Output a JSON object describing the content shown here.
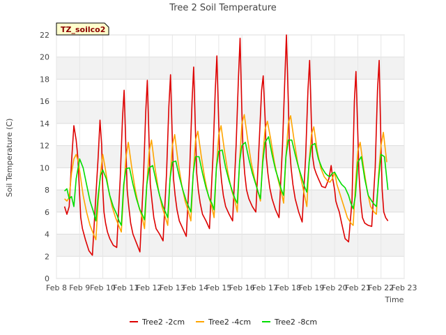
{
  "chart_data": {
    "type": "line",
    "title": "Tree 2 Soil Temperature",
    "xlabel": "Time",
    "ylabel": "Soil Temperature (C)",
    "tag": "TZ_soilco2",
    "xlim": [
      8.0,
      23.0
    ],
    "ylim": [
      0,
      22
    ],
    "x_ticks": [
      8,
      9,
      10,
      11,
      12,
      13,
      14,
      15,
      16,
      17,
      18,
      19,
      20,
      21,
      22,
      23
    ],
    "x_tick_labels": [
      "Feb 8",
      "Feb 9",
      "Feb 10",
      "Feb 11",
      "Feb 12",
      "Feb 13",
      "Feb 14",
      "Feb 15",
      "Feb 16",
      "Feb 17",
      "Feb 18",
      "Feb 19",
      "Feb 20",
      "Feb 21",
      "Feb 22",
      "Feb 23"
    ],
    "y_ticks": [
      0,
      2,
      4,
      6,
      8,
      10,
      12,
      14,
      16,
      18,
      20,
      22
    ],
    "grid": true,
    "legend": "bottom",
    "series": [
      {
        "name": "Tree2 -2cm",
        "color": "#dd0000",
        "x": [
          8.35,
          8.45,
          8.55,
          8.65,
          8.75,
          8.85,
          8.92,
          9.0,
          9.05,
          9.12,
          9.25,
          9.4,
          9.55,
          9.7,
          9.8,
          9.88,
          9.95,
          10.0,
          10.05,
          10.12,
          10.2,
          10.3,
          10.45,
          10.6,
          10.75,
          10.85,
          10.92,
          11.0,
          11.05,
          11.12,
          11.2,
          11.3,
          11.45,
          11.6,
          11.75,
          11.85,
          11.92,
          12.0,
          12.05,
          12.12,
          12.2,
          12.3,
          12.45,
          12.6,
          12.75,
          12.85,
          12.92,
          13.0,
          13.05,
          13.12,
          13.2,
          13.3,
          13.45,
          13.6,
          13.75,
          13.85,
          13.92,
          14.0,
          14.05,
          14.12,
          14.2,
          14.3,
          14.45,
          14.6,
          14.75,
          14.85,
          14.92,
          15.0,
          15.05,
          15.12,
          15.2,
          15.3,
          15.45,
          15.6,
          15.75,
          15.85,
          15.92,
          16.0,
          16.05,
          16.12,
          16.2,
          16.3,
          16.45,
          16.6,
          16.75,
          16.85,
          16.92,
          17.0,
          17.05,
          17.12,
          17.2,
          17.3,
          17.45,
          17.6,
          17.75,
          17.85,
          17.92,
          18.0,
          18.05,
          18.12,
          18.2,
          18.3,
          18.45,
          18.6,
          18.75,
          18.85,
          18.92,
          19.0,
          19.05,
          19.12,
          19.2,
          19.3,
          19.45,
          19.6,
          19.75,
          19.85,
          19.92,
          20.0,
          20.05,
          20.12,
          20.2,
          20.3,
          20.45,
          20.6,
          20.75,
          20.85,
          20.92,
          21.0,
          21.05,
          21.12,
          21.2,
          21.3,
          21.45,
          21.6,
          21.75,
          21.85,
          21.92,
          22.0,
          22.05,
          22.12,
          22.2,
          22.3
        ],
        "y": [
          6.5,
          5.8,
          6.5,
          10.5,
          13.8,
          12.5,
          11.0,
          7.5,
          5.5,
          4.5,
          3.5,
          2.5,
          2.1,
          7.5,
          11.0,
          14.3,
          12.0,
          8.0,
          6.0,
          5.0,
          4.2,
          3.6,
          3.0,
          2.8,
          9.0,
          14.5,
          17.0,
          11.5,
          8.0,
          6.5,
          5.0,
          4.0,
          3.2,
          2.4,
          9.0,
          15.0,
          17.9,
          12.0,
          8.5,
          7.0,
          5.5,
          4.5,
          4.0,
          3.4,
          9.5,
          15.5,
          18.4,
          12.5,
          9.0,
          7.5,
          6.2,
          5.2,
          4.5,
          3.8,
          10.0,
          16.0,
          19.1,
          13.0,
          9.5,
          8.0,
          6.8,
          5.8,
          5.2,
          4.5,
          11.0,
          17.0,
          20.1,
          14.0,
          10.5,
          8.8,
          7.5,
          6.5,
          5.8,
          5.2,
          12.0,
          18.0,
          21.7,
          15.0,
          11.5,
          9.5,
          8.0,
          7.2,
          6.5,
          6.0,
          12.5,
          17.0,
          18.3,
          14.5,
          11.0,
          9.5,
          8.2,
          7.2,
          6.2,
          5.5,
          12.0,
          18.0,
          22.0,
          16.0,
          12.0,
          10.0,
          8.5,
          7.2,
          6.0,
          5.1,
          11.0,
          17.0,
          19.7,
          14.0,
          11.0,
          10.0,
          9.5,
          9.0,
          8.3,
          8.2,
          9.0,
          10.2,
          9.0,
          8.0,
          7.0,
          6.5,
          6.0,
          5.0,
          3.6,
          3.3,
          7.0,
          16.0,
          18.7,
          13.0,
          9.5,
          7.0,
          5.5,
          5.0,
          4.8,
          4.7,
          10.0,
          17.0,
          19.7,
          12.0,
          8.0,
          6.0,
          5.5,
          5.2
        ]
      },
      {
        "name": "Tree2 -4cm",
        "color": "#ffa500",
        "x": [
          8.35,
          8.45,
          8.55,
          8.65,
          8.75,
          8.85,
          8.95,
          9.05,
          9.15,
          9.3,
          9.45,
          9.6,
          9.7,
          9.8,
          9.9,
          10.0,
          10.1,
          10.25,
          10.4,
          10.55,
          10.7,
          10.8,
          10.9,
          11.0,
          11.1,
          11.25,
          11.4,
          11.55,
          11.7,
          11.8,
          11.9,
          12.0,
          12.1,
          12.25,
          12.4,
          12.55,
          12.7,
          12.8,
          12.9,
          13.0,
          13.1,
          13.25,
          13.4,
          13.55,
          13.7,
          13.8,
          13.9,
          14.0,
          14.1,
          14.25,
          14.4,
          14.55,
          14.7,
          14.8,
          14.9,
          15.0,
          15.1,
          15.25,
          15.4,
          15.55,
          15.7,
          15.8,
          15.9,
          16.0,
          16.1,
          16.25,
          16.4,
          16.55,
          16.7,
          16.8,
          16.9,
          17.0,
          17.1,
          17.25,
          17.4,
          17.55,
          17.7,
          17.8,
          17.9,
          18.0,
          18.1,
          18.25,
          18.4,
          18.55,
          18.7,
          18.8,
          18.9,
          19.0,
          19.1,
          19.25,
          19.4,
          19.55,
          19.7,
          19.8,
          19.9,
          20.0,
          20.1,
          20.25,
          20.4,
          20.55,
          20.7,
          20.8,
          20.9,
          21.0,
          21.1,
          21.25,
          21.4,
          21.55,
          21.7,
          21.8,
          21.9,
          22.0,
          22.1,
          22.25
        ],
        "y": [
          7.2,
          7.0,
          7.3,
          9.5,
          10.8,
          11.2,
          10.5,
          9.0,
          7.5,
          6.0,
          4.8,
          4.0,
          3.5,
          7.0,
          9.5,
          11.2,
          10.0,
          8.0,
          6.5,
          5.5,
          4.7,
          4.2,
          8.0,
          11.0,
          12.3,
          10.0,
          8.0,
          6.5,
          5.5,
          4.5,
          8.5,
          11.5,
          12.5,
          10.0,
          8.0,
          6.5,
          5.5,
          4.8,
          9.0,
          12.0,
          13.0,
          10.5,
          8.5,
          7.0,
          6.0,
          5.2,
          9.5,
          12.5,
          13.3,
          11.0,
          9.0,
          7.5,
          6.5,
          5.5,
          10.0,
          13.0,
          13.8,
          11.5,
          9.5,
          8.0,
          7.0,
          6.0,
          10.5,
          14.0,
          14.8,
          12.5,
          10.5,
          9.0,
          7.8,
          7.0,
          11.0,
          13.5,
          14.2,
          12.5,
          10.5,
          9.0,
          7.8,
          6.8,
          11.0,
          14.0,
          14.7,
          12.5,
          10.5,
          9.0,
          7.5,
          6.5,
          10.5,
          13.0,
          13.7,
          11.5,
          10.0,
          9.2,
          8.8,
          8.7,
          9.0,
          9.6,
          8.5,
          7.5,
          6.5,
          5.5,
          5.0,
          4.8,
          8.5,
          11.5,
          12.3,
          10.0,
          8.0,
          6.5,
          6.0,
          5.8,
          9.5,
          12.0,
          13.2,
          10.5
        ]
      },
      {
        "name": "Tree2 -8cm",
        "color": "#00dd00",
        "x": [
          8.35,
          8.45,
          8.55,
          8.65,
          8.75,
          8.85,
          9.0,
          9.15,
          9.3,
          9.45,
          9.6,
          9.7,
          9.8,
          9.9,
          10.0,
          10.15,
          10.3,
          10.45,
          10.6,
          10.7,
          10.8,
          10.9,
          11.0,
          11.15,
          11.3,
          11.45,
          11.6,
          11.7,
          11.8,
          11.9,
          12.0,
          12.15,
          12.3,
          12.45,
          12.6,
          12.7,
          12.8,
          12.9,
          13.0,
          13.15,
          13.3,
          13.45,
          13.6,
          13.7,
          13.8,
          13.9,
          14.0,
          14.15,
          14.3,
          14.45,
          14.6,
          14.7,
          14.8,
          14.9,
          15.0,
          15.15,
          15.3,
          15.45,
          15.6,
          15.7,
          15.8,
          15.9,
          16.0,
          16.15,
          16.3,
          16.45,
          16.6,
          16.7,
          16.8,
          16.9,
          17.0,
          17.15,
          17.3,
          17.45,
          17.6,
          17.7,
          17.8,
          17.9,
          18.0,
          18.15,
          18.3,
          18.45,
          18.6,
          18.7,
          18.8,
          18.9,
          19.0,
          19.15,
          19.3,
          19.45,
          19.6,
          19.7,
          19.8,
          19.9,
          20.0,
          20.15,
          20.3,
          20.45,
          20.6,
          20.7,
          20.8,
          20.9,
          21.0,
          21.15,
          21.3,
          21.45,
          21.6,
          21.7,
          21.8,
          21.9,
          22.0,
          22.15,
          22.3
        ],
        "y": [
          7.9,
          8.1,
          7.2,
          7.4,
          6.5,
          9.0,
          10.8,
          10.0,
          8.5,
          7.0,
          6.0,
          5.2,
          7.5,
          9.3,
          9.8,
          9.0,
          7.5,
          6.5,
          5.8,
          5.2,
          4.8,
          8.5,
          9.9,
          10.0,
          8.5,
          7.2,
          6.2,
          5.8,
          5.3,
          8.5,
          10.0,
          10.2,
          8.8,
          7.5,
          6.5,
          6.0,
          5.5,
          9.0,
          10.5,
          10.6,
          9.2,
          8.0,
          7.0,
          6.5,
          6.0,
          9.5,
          11.0,
          11.0,
          9.5,
          8.2,
          7.2,
          6.8,
          6.2,
          10.0,
          11.5,
          11.6,
          10.0,
          8.8,
          7.8,
          7.2,
          6.8,
          10.5,
          12.0,
          12.3,
          10.8,
          9.5,
          8.5,
          7.8,
          7.2,
          10.5,
          12.3,
          12.8,
          11.2,
          9.8,
          8.8,
          8.0,
          7.5,
          11.0,
          12.5,
          12.5,
          11.2,
          10.0,
          9.0,
          8.3,
          7.8,
          10.5,
          12.0,
          12.2,
          10.8,
          10.0,
          9.5,
          9.3,
          9.2,
          9.5,
          9.6,
          9.0,
          8.5,
          8.2,
          7.5,
          6.8,
          6.3,
          7.5,
          10.5,
          11.0,
          9.0,
          7.5,
          7.0,
          6.7,
          6.5,
          9.0,
          11.2,
          11.0,
          8.0
        ]
      }
    ]
  }
}
